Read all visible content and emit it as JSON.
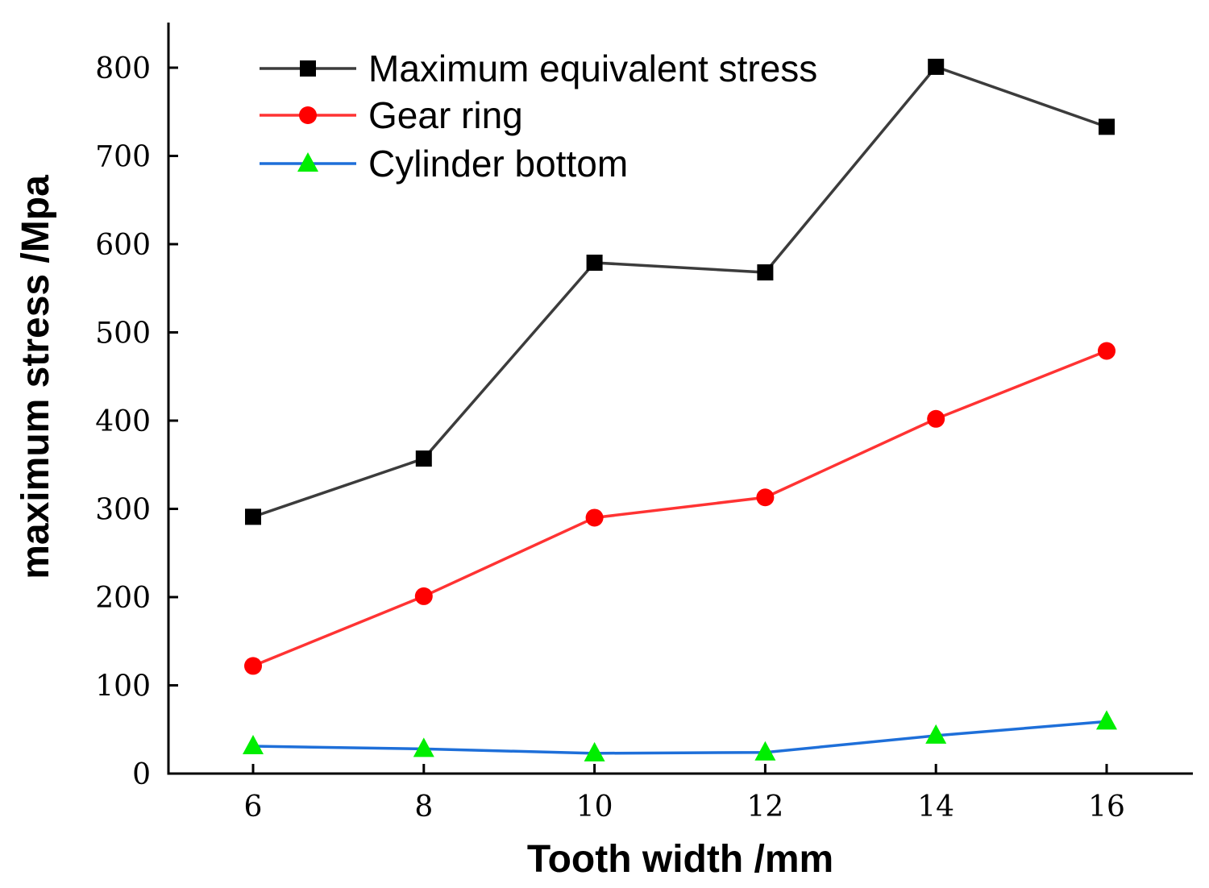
{
  "chart_data": {
    "type": "line",
    "title": "",
    "xlabel": "Tooth width /mm",
    "ylabel": "maximum stress /Mpa",
    "x": [
      6,
      8,
      10,
      12,
      14,
      16
    ],
    "xticks": [
      6,
      8,
      10,
      12,
      14,
      16
    ],
    "yticks": [
      0,
      100,
      200,
      300,
      400,
      500,
      600,
      700,
      800
    ],
    "xlim": [
      5,
      17
    ],
    "ylim": [
      0,
      850
    ],
    "grid": false,
    "legend_position": "top-left",
    "series": [
      {
        "name": "Maximum equivalent stress",
        "values": [
          291,
          357,
          579,
          568,
          801,
          733
        ],
        "color": "#3c3c3c",
        "marker_color": "#000000",
        "marker": "square"
      },
      {
        "name": "Gear ring",
        "values": [
          122,
          201,
          290,
          313,
          402,
          479
        ],
        "color": "#ff3333",
        "marker_color": "#ff0000",
        "marker": "circle"
      },
      {
        "name": "Cylinder bottom",
        "values": [
          31,
          28,
          23,
          24,
          43,
          59
        ],
        "color": "#1e6fd9",
        "marker_color": "#00ee00",
        "marker": "triangle"
      }
    ]
  }
}
